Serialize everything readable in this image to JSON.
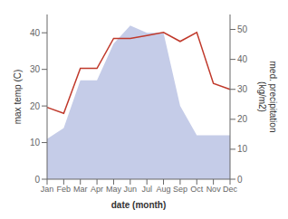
{
  "chart_data": {
    "type": "line",
    "categories": [
      "Jan",
      "Feb",
      "Mar",
      "Apr",
      "May",
      "Jun",
      "Jul",
      "Aug",
      "Sep",
      "Oct",
      "Nov",
      "Dec"
    ],
    "xlabel": "date (month)",
    "ylabel": "max temp (C)",
    "y2label": "med. precipitation\n(kg/m2)",
    "ylim": [
      0,
      45
    ],
    "yticks": [
      0,
      10,
      20,
      30,
      40
    ],
    "y2lim": [
      0,
      55
    ],
    "y2ticks": [
      0,
      10,
      20,
      30,
      40,
      50
    ],
    "grid": false,
    "series": [
      {
        "type": "area",
        "color": "#c5cce8",
        "values": [
          11,
          14,
          27,
          27,
          37,
          42,
          40,
          40,
          20,
          12,
          12,
          12
        ]
      },
      {
        "type": "line",
        "color": "#c0392b",
        "axis": "y2",
        "values": [
          24,
          22,
          37,
          37,
          47,
          47,
          48,
          49,
          46,
          49,
          32,
          30
        ]
      }
    ]
  }
}
